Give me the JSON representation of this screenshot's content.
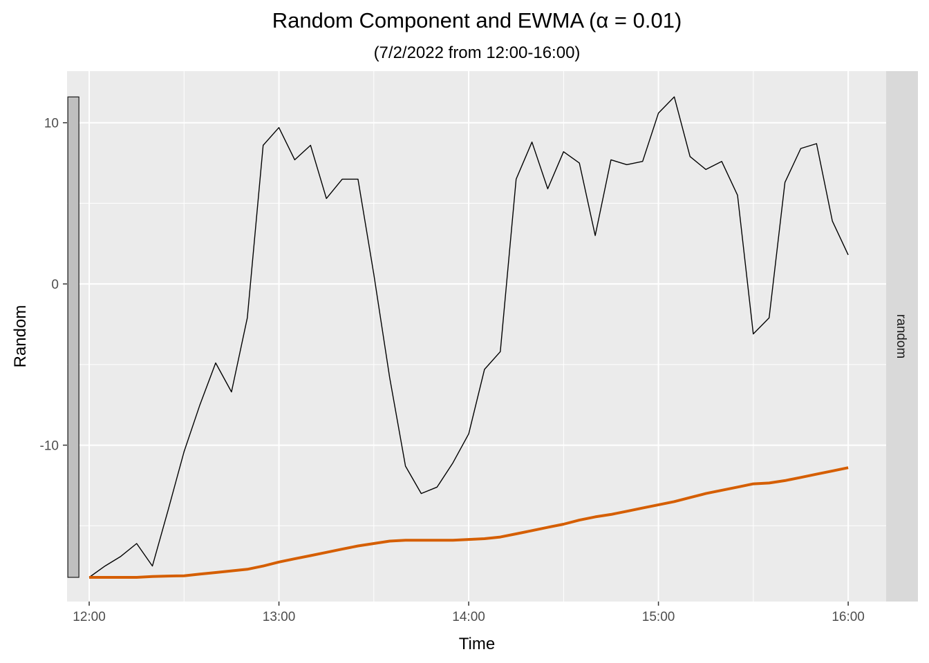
{
  "chart_data": {
    "type": "line",
    "title": "Random Component and EWMA (α = 0.01)",
    "subtitle": "(7/2/2022 from 12:00-16:00)",
    "xlabel": "Time",
    "ylabel": "Random",
    "facet_label": "random",
    "x_tick_labels": [
      "12:00",
      "13:00",
      "14:00",
      "15:00",
      "16:00"
    ],
    "y_ticks": [
      10,
      0,
      -10
    ],
    "y_tick_labels": [
      "10",
      "0",
      "-10"
    ],
    "xlim": [
      "11:53",
      "16:12"
    ],
    "ylim": [
      -19.7,
      13.2
    ],
    "grid": true,
    "colors": {
      "panel_background": "#ebebeb",
      "grid": "#ffffff",
      "strip_background": "#d9d9d9",
      "random_line": "#000000",
      "ewma_line": "#d55e00",
      "range_bar_fill": "#bfbfbf",
      "range_bar_stroke": "#1a1a1a"
    },
    "range_bar": {
      "x": "11:55",
      "ymin": -18.2,
      "ymax": 11.6
    },
    "series": [
      {
        "x": [
          "12:00",
          "12:05",
          "12:10",
          "12:15",
          "12:20",
          "12:25",
          "12:30",
          "12:35",
          "12:40",
          "12:45",
          "12:50",
          "12:55",
          "13:00",
          "13:05",
          "13:10",
          "13:15",
          "13:20",
          "13:25",
          "13:30",
          "13:35",
          "13:40",
          "13:45",
          "13:50",
          "13:55",
          "14:00",
          "14:05",
          "14:10",
          "14:15",
          "14:20",
          "14:25",
          "14:30",
          "14:35",
          "14:40",
          "14:45",
          "14:50",
          "14:55",
          "15:00",
          "15:05",
          "15:10",
          "15:15",
          "15:20",
          "15:25",
          "15:30",
          "15:35",
          "15:40",
          "15:45",
          "15:50",
          "15:55",
          "16:00"
        ],
        "values": [
          -18.2,
          -17.5,
          -16.9,
          -16.1,
          -17.5,
          -14.0,
          -10.4,
          -7.5,
          -4.9,
          -6.7,
          -2.1,
          8.6,
          9.7,
          7.7,
          8.6,
          5.3,
          6.5,
          6.5,
          0.6,
          -5.8,
          -11.3,
          -13.0,
          -12.6,
          -11.1,
          -9.3,
          -5.3,
          -4.2,
          6.5,
          8.8,
          5.9,
          8.2,
          7.5,
          3.0,
          7.7,
          7.4,
          7.6,
          10.6,
          11.6,
          7.9,
          7.1,
          7.6,
          5.5,
          -3.1,
          -2.1,
          6.3,
          8.4,
          8.7,
          3.9,
          1.8
        ]
      },
      {
        "x": [
          "12:00",
          "12:05",
          "12:10",
          "12:15",
          "12:20",
          "12:25",
          "12:30",
          "12:35",
          "12:40",
          "12:45",
          "12:50",
          "12:55",
          "13:00",
          "13:05",
          "13:10",
          "13:15",
          "13:20",
          "13:25",
          "13:30",
          "13:35",
          "13:40",
          "13:45",
          "13:50",
          "13:55",
          "14:00",
          "14:05",
          "14:10",
          "14:15",
          "14:20",
          "14:25",
          "14:30",
          "14:35",
          "14:40",
          "14:45",
          "14:50",
          "14:55",
          "15:00",
          "15:05",
          "15:10",
          "15:15",
          "15:20",
          "15:25",
          "15:30",
          "15:35",
          "15:40",
          "15:45",
          "15:50",
          "15:55",
          "16:00"
        ],
        "values": [
          -18.2,
          -18.2,
          -18.2,
          -18.2,
          -18.15,
          -18.12,
          -18.1,
          -18.0,
          -17.9,
          -17.8,
          -17.7,
          -17.5,
          -17.25,
          -17.05,
          -16.85,
          -16.65,
          -16.45,
          -16.25,
          -16.1,
          -15.95,
          -15.9,
          -15.9,
          -15.9,
          -15.9,
          -15.85,
          -15.8,
          -15.7,
          -15.5,
          -15.3,
          -15.1,
          -14.9,
          -14.65,
          -14.45,
          -14.3,
          -14.1,
          -13.9,
          -13.7,
          -13.5,
          -13.25,
          -13.0,
          -12.8,
          -12.6,
          -12.4,
          -12.35,
          -12.2,
          -12.0,
          -11.8,
          -11.6,
          -11.4
        ]
      }
    ]
  }
}
